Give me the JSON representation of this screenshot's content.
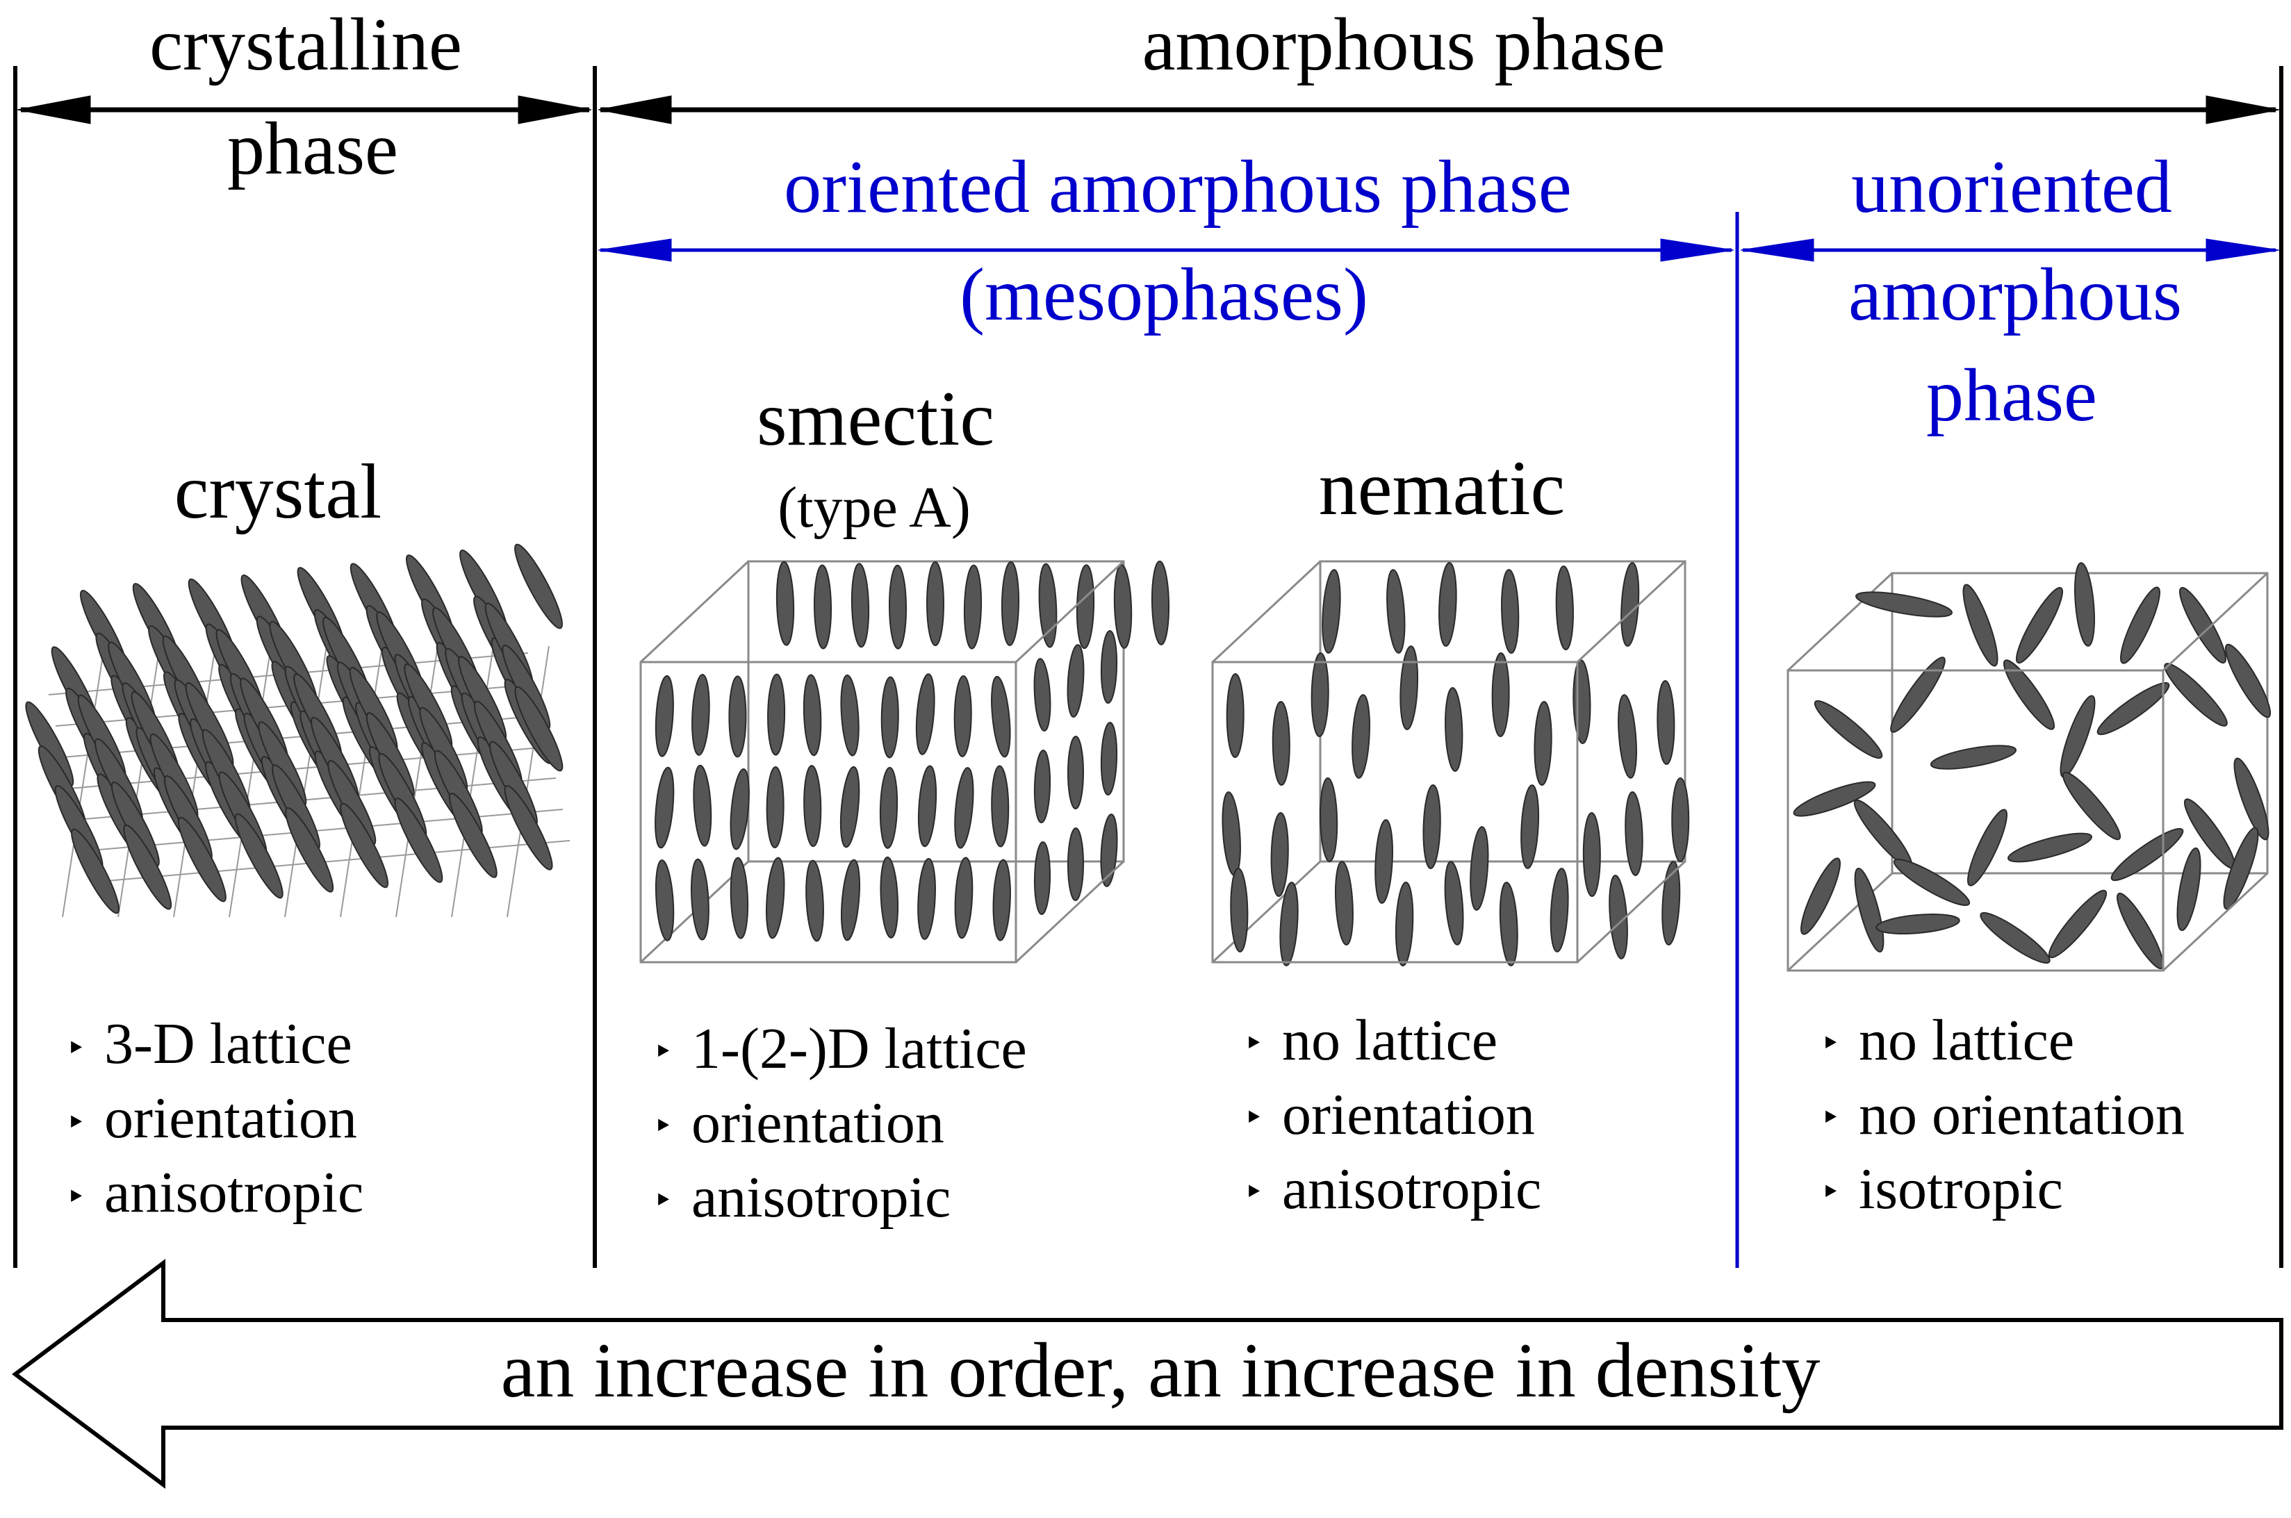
{
  "colors": {
    "black": "#000000",
    "blue": "#0000cc",
    "molecule": "#555555",
    "molecule_edge": "#2a2a2a",
    "box": "#8a8a8a"
  },
  "header": {
    "crystalline_line1": "crystalline",
    "crystalline_line2": "phase",
    "amorphous": "amorphous phase",
    "oriented_line1": "oriented amorphous phase",
    "oriented_line2": "(mesophases)",
    "unoriented_line1": "unoriented",
    "unoriented_line2": "amorphous",
    "unoriented_line3": "phase"
  },
  "phases": {
    "crystal": {
      "title": "crystal",
      "props": [
        "3-D lattice",
        "orientation",
        "anisotropic"
      ]
    },
    "smectic": {
      "title": "smectic",
      "subtitle": "(type A)",
      "props": [
        "1-(2-)D lattice",
        "orientation",
        "anisotropic"
      ]
    },
    "nematic": {
      "title": "nematic",
      "props": [
        "no lattice",
        "orientation",
        "anisotropic"
      ]
    },
    "isotropic": {
      "props": [
        "no lattice",
        "no orientation",
        "isotropic"
      ]
    }
  },
  "bullet": "‣",
  "footer_arrow": "an increase in order, an increase in density"
}
